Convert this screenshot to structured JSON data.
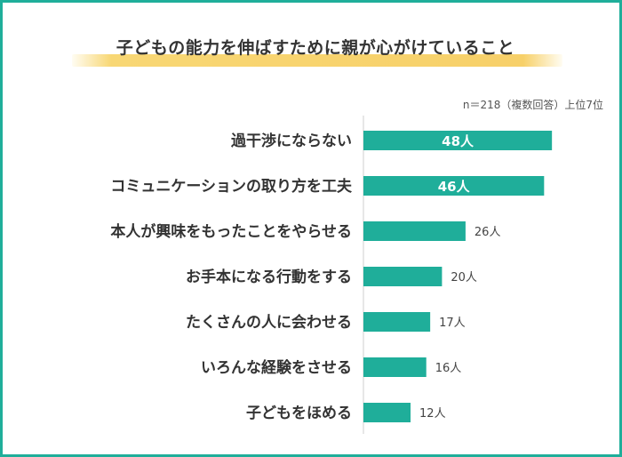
{
  "title": "子どもの能力を伸ばすために親が心がけていること",
  "note": "n＝218（複数回答）上位7位",
  "colors": {
    "bar": "#1fae9a",
    "frame": "#1fae9a",
    "axis": "#cfcfcf",
    "highlight": "#f7d069"
  },
  "chart_data": {
    "type": "bar",
    "orientation": "horizontal",
    "title": "子どもの能力を伸ばすために親が心がけていること",
    "note": "n＝218（複数回答）上位7位",
    "categories": [
      "過干渉にならない",
      "コミュニケーションの取り方を工夫",
      "本人が興味をもったことをやらせる",
      "お手本になる行動をする",
      "たくさんの人に会わせる",
      "いろんな経験をさせる",
      "子どもをほめる"
    ],
    "values": [
      48,
      46,
      26,
      20,
      17,
      16,
      12
    ],
    "value_labels": [
      "48人",
      "46人",
      "26人",
      "20人",
      "17人",
      "16人",
      "12人"
    ],
    "unit": "人",
    "xlim": [
      0,
      50
    ],
    "grid": false,
    "legend": "none"
  }
}
